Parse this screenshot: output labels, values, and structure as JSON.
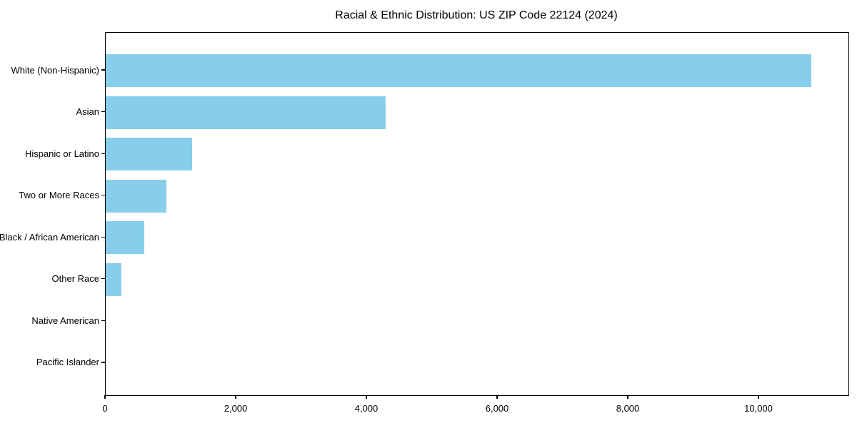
{
  "figure": {
    "background": "#ffffff"
  },
  "chart_data": {
    "type": "bar",
    "orientation": "horizontal",
    "title": "Racial & Ethnic Distribution: US ZIP Code 22124 (2024)",
    "categories": [
      "White (Non-Hispanic)",
      "Asian",
      "Hispanic or Latino",
      "Two or More Races",
      "Black / African American",
      "Other Race",
      "Native American",
      "Pacific Islander"
    ],
    "values": [
      10800,
      4280,
      1320,
      930,
      590,
      240,
      0,
      0
    ],
    "xlabel": "",
    "ylabel": "",
    "xlim": [
      0,
      11366
    ],
    "xticks": [
      0,
      2000,
      4000,
      6000,
      8000,
      10000
    ],
    "xtick_labels": [
      "0",
      "2,000",
      "4,000",
      "6,000",
      "8,000",
      "10,000"
    ],
    "bar_color": "#87CEEB",
    "spine_color": "#000000",
    "text_color": "#000000",
    "grid": false,
    "legend": null
  }
}
